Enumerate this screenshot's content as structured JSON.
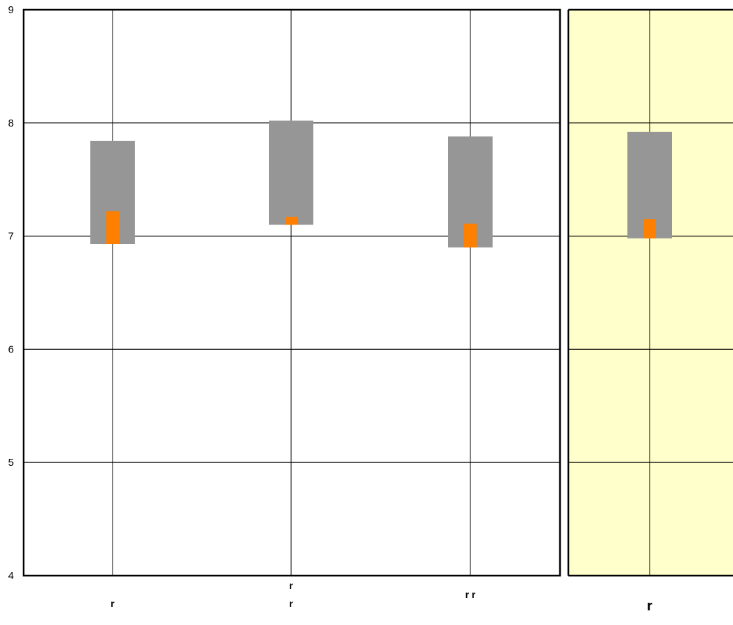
{
  "chart_data": {
    "type": "box",
    "title": "",
    "xlabel": "",
    "ylabel": "",
    "ylim": [
      4,
      9
    ],
    "yticks": [
      4,
      5,
      6,
      7,
      8,
      9
    ],
    "grid": true,
    "highlighted_category_index": 3,
    "categories": [
      {
        "label_lines": [
          {
            "text": "r",
            "offset": 0.25
          }
        ],
        "range_low": 6.93,
        "range_high": 7.84,
        "median_low": 6.93,
        "median_high": 7.22
      },
      {
        "label_lines": [
          {
            "text": "r",
            "offset": -0.25
          },
          {
            "text": "r",
            "offset": 0.25
          }
        ],
        "range_low": 7.1,
        "range_high": 8.02,
        "median_low": 7.1,
        "median_high": 7.17
      },
      {
        "label_lines": [
          {
            "text": "r r",
            "offset": 0
          }
        ],
        "range_low": 6.9,
        "range_high": 7.88,
        "median_low": 6.9,
        "median_high": 7.11
      },
      {
        "label_lines": [
          {
            "text": "r",
            "offset": 0
          }
        ],
        "range_low": 6.98,
        "range_high": 7.92,
        "median_low": 6.98,
        "median_high": 7.15
      }
    ]
  },
  "colors": {
    "background": "#ffffff",
    "highlight_panel": "#ffffcc",
    "range_box": "#969696",
    "median_box": "#ff8000",
    "gridline": "#000000",
    "axis": "#000000"
  }
}
